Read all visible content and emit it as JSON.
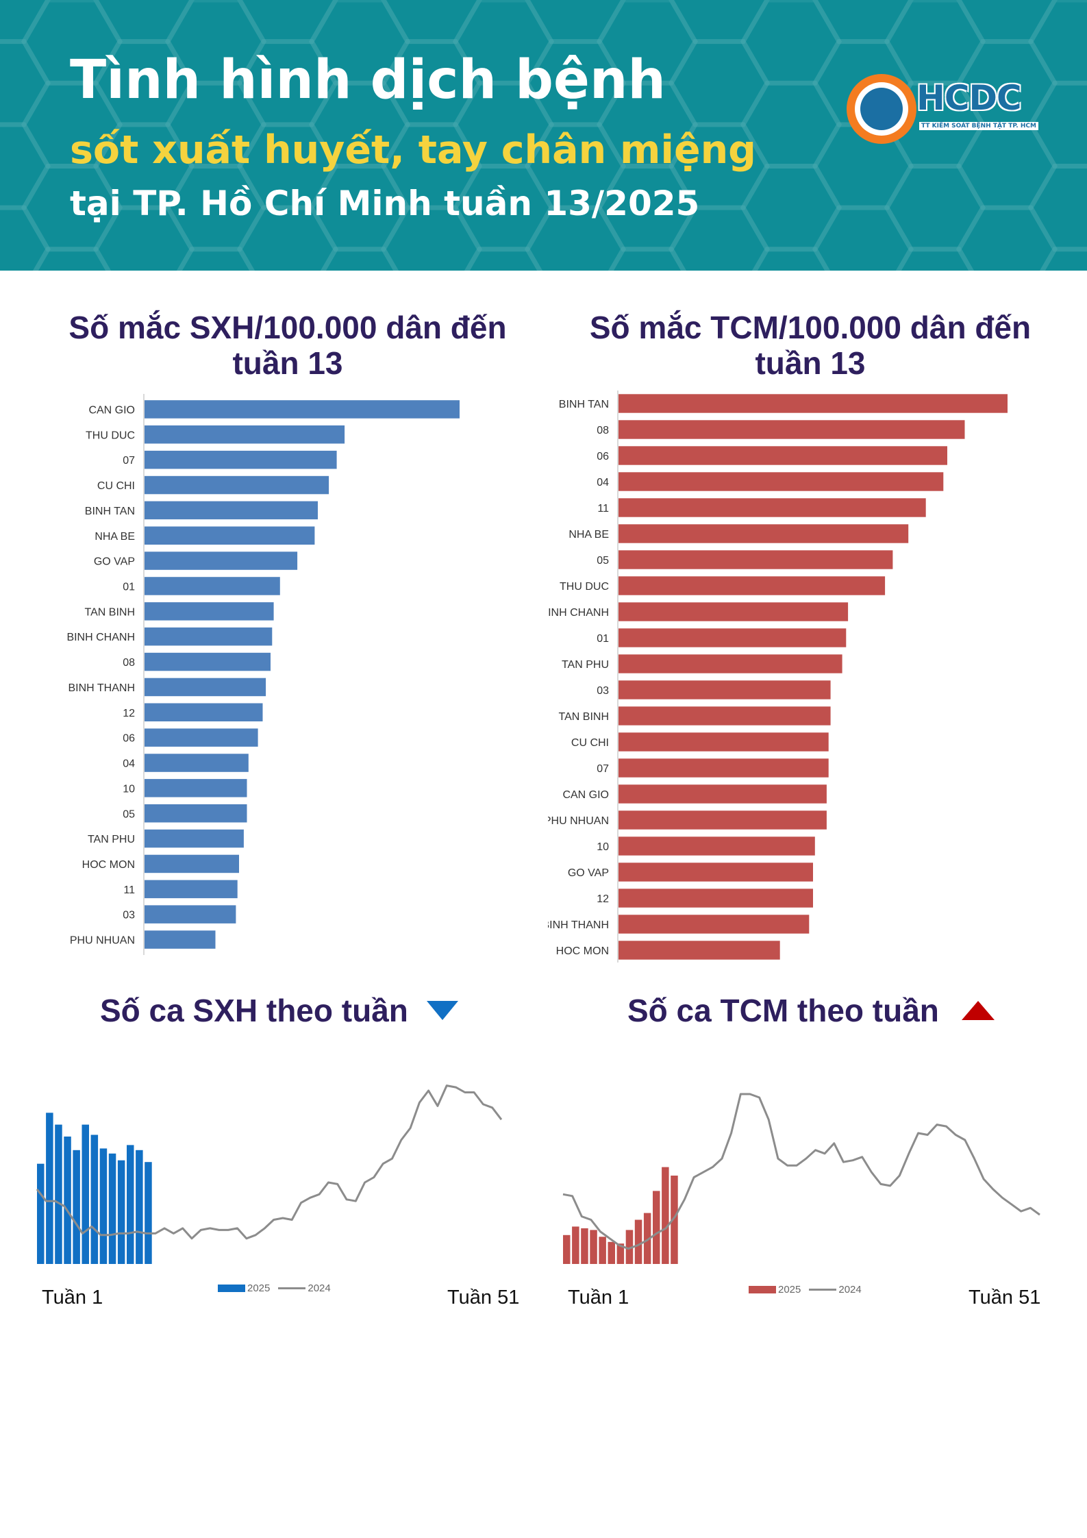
{
  "header": {
    "title_line1": "Tình hình dịch bệnh",
    "title_line2": "sốt xuất huyết, tay chân miệng",
    "title_line3": "tại TP. Hồ Chí Minh tuần 13/2025",
    "logo_text": "HCDC",
    "logo_subtext": "TT KIỂM SOÁT BỆNH TẬT TP. HCM",
    "colors": {
      "background": "#0f8d97",
      "highlight": "#f5d33e",
      "logo_orange": "#f47c20",
      "logo_blue": "#1b6fa3"
    }
  },
  "chart_data": [
    {
      "type": "bar",
      "orientation": "horizontal",
      "title": "Số mắc SXH/100.000 dân đến tuần 13",
      "color": "#4f81bd",
      "categories": [
        "CAN GIO",
        "THU DUC",
        "07",
        "CU CHI",
        "BINH TAN",
        "NHA BE",
        "GO VAP",
        "01",
        "TAN BINH",
        "BINH CHANH",
        "08",
        "BINH THANH",
        "12",
        "06",
        "04",
        "10",
        "05",
        "TAN PHU",
        "HOC MON",
        "11",
        "03",
        "PHU NHUAN"
      ],
      "values": [
        100,
        63.5,
        61,
        58.5,
        55,
        54,
        48.5,
        43,
        41,
        40.5,
        40,
        38.5,
        37.5,
        36,
        33,
        32.5,
        32.5,
        31.5,
        30,
        29.5,
        29,
        22.5
      ],
      "xlim": [
        0,
        100
      ]
    },
    {
      "type": "bar",
      "orientation": "horizontal",
      "title": "Số mắc TCM/100.000 dân đến tuần 13",
      "color": "#c0504d",
      "categories": [
        "BINH TAN",
        "08",
        "06",
        "04",
        "11",
        "NHA BE",
        "05",
        "THU DUC",
        "BINH CHANH",
        "01",
        "TAN PHU",
        "03",
        "TAN BINH",
        "CU CHI",
        "07",
        "CAN GIO",
        "PHU NHUAN",
        "10",
        "GO VAP",
        "12",
        "BINH THANH",
        "HOC MON"
      ],
      "values": [
        100,
        89,
        84.5,
        83.5,
        79,
        74.5,
        70.5,
        68.5,
        59,
        58.5,
        57.5,
        54.5,
        54.5,
        54,
        54,
        53.5,
        53.5,
        50.5,
        50,
        50,
        49,
        41.5
      ],
      "xlim": [
        0,
        100
      ]
    },
    {
      "type": "bar+line",
      "title": "Số ca SXH theo tuần",
      "trend": "down",
      "x_start_label": "Tuần 1",
      "x_end_label": "Tuần 51",
      "ylim": [
        0,
        100
      ],
      "series": [
        {
          "name": "2025",
          "type": "bar",
          "color": "#1170c4",
          "values": [
            59,
            89,
            82,
            75,
            67,
            82,
            76,
            68,
            65,
            61,
            70,
            67,
            60
          ]
        },
        {
          "name": "2024",
          "type": "line",
          "color": "#8c8c8c",
          "values": [
            44,
            37,
            37,
            34,
            26,
            18,
            22,
            17,
            17,
            18,
            18,
            19,
            18,
            18,
            21,
            18,
            21,
            15,
            20,
            21,
            20,
            20,
            21,
            15,
            17,
            21,
            26,
            27,
            26,
            36,
            39,
            41,
            48,
            47,
            38,
            37,
            48,
            51,
            59,
            62,
            73,
            80,
            95,
            102,
            93,
            105,
            104,
            101,
            101,
            94,
            92,
            85
          ]
        }
      ]
    },
    {
      "type": "bar+line",
      "title": "Số ca TCM theo tuần",
      "trend": "up",
      "x_start_label": "Tuần 1",
      "x_end_label": "Tuần 51",
      "ylim": [
        0,
        100
      ],
      "series": [
        {
          "name": "2025",
          "type": "bar",
          "color": "#c0504d",
          "values": [
            17,
            22,
            21,
            20,
            16,
            13,
            12,
            20,
            26,
            30,
            43,
            57,
            52
          ]
        },
        {
          "name": "2024",
          "type": "line",
          "color": "#8c8c8c",
          "values": [
            41,
            40,
            28,
            26,
            19,
            15,
            11,
            9,
            11,
            14,
            18,
            21,
            28,
            38,
            51,
            54,
            57,
            62,
            77,
            100,
            100,
            98,
            85,
            62,
            58,
            58,
            62,
            67,
            65,
            71,
            60,
            61,
            63,
            54,
            47,
            46,
            52,
            65,
            77,
            76,
            82,
            81,
            76,
            73,
            62,
            50,
            44,
            39,
            35,
            31,
            33,
            29
          ]
        }
      ]
    }
  ]
}
